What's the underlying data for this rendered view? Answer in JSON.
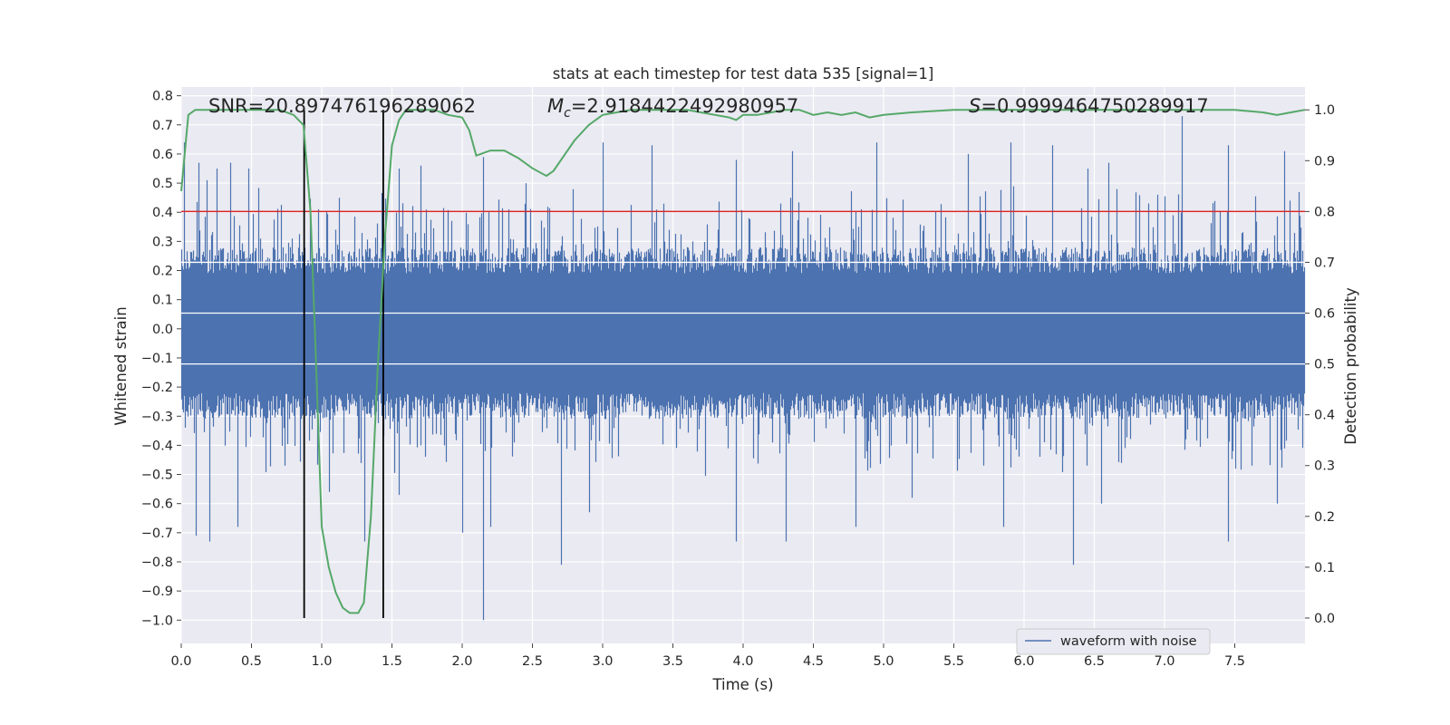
{
  "chart_data": {
    "type": "line",
    "title": "stats at each timestep for test data 535 [signal=1]",
    "xlabel": "Time (s)",
    "ylabel": "Whitened strain",
    "y2label": "Detection probability",
    "xlim": [
      0.0,
      8.0
    ],
    "ylim": [
      -1.08,
      0.83
    ],
    "y2lim": [
      -0.05,
      1.045
    ],
    "xticks": [
      0.0,
      0.5,
      1.0,
      1.5,
      2.0,
      2.5,
      3.0,
      3.5,
      4.0,
      4.5,
      5.0,
      5.5,
      6.0,
      6.5,
      7.0,
      7.5
    ],
    "xtick_labels": [
      "0.0",
      "0.5",
      "1.0",
      "1.5",
      "2.0",
      "2.5",
      "3.0",
      "3.5",
      "4.0",
      "4.5",
      "5.0",
      "5.5",
      "6.0",
      "6.5",
      "7.0",
      "7.5"
    ],
    "yticks": [
      0.8,
      0.7,
      0.6,
      0.5,
      0.4,
      0.3,
      0.2,
      0.1,
      0.0,
      -0.1,
      -0.2,
      -0.3,
      -0.4,
      -0.5,
      -0.6,
      -0.7,
      -0.8,
      -0.9,
      -1.0
    ],
    "ytick_labels": [
      "0.8",
      "0.7",
      "0.6",
      "0.5",
      "0.4",
      "0.3",
      "0.2",
      "0.1",
      "0.0",
      "−0.1",
      "−0.2",
      "−0.3",
      "−0.4",
      "−0.5",
      "−0.6",
      "−0.7",
      "−0.8",
      "−0.9",
      "−1.0"
    ],
    "y2ticks": [
      1.0,
      0.9,
      0.8,
      0.7,
      0.6,
      0.5,
      0.4,
      0.3,
      0.2,
      0.1,
      0.0
    ],
    "y2tick_labels": [
      "1.0",
      "0.9",
      "0.8",
      "0.7",
      "0.6",
      "0.5",
      "0.4",
      "0.3",
      "0.2",
      "0.1",
      "0.0"
    ],
    "annotations": {
      "snr": "SNR=20.897476196289062",
      "mc_symbol": "M",
      "mc_sub": "c",
      "mc_value": "=2.9184422492980957",
      "s_symbol": "S",
      "s_value": "=0.9999464750289917"
    },
    "legend": {
      "label": "waveform with noise",
      "position": "lower-right"
    },
    "threshold": {
      "value": 0.8,
      "axis": "right",
      "color": "#d62728"
    },
    "vlines": {
      "x": [
        0.875,
        1.438
      ],
      "color": "#000000"
    },
    "series": [
      {
        "name": "waveform with noise",
        "axis": "left",
        "color": "#4c72b0",
        "description": "whitened strain time series, approx. ±0.25 dense band with spikes up to 0.74 and down to -1.0",
        "spikes_high": [
          [
            0.02,
            0.64
          ],
          [
            0.12,
            0.57
          ],
          [
            0.18,
            0.51
          ],
          [
            0.25,
            0.55
          ],
          [
            0.35,
            0.57
          ],
          [
            0.48,
            0.55
          ],
          [
            1.12,
            0.45
          ],
          [
            1.55,
            0.55
          ],
          [
            1.7,
            0.56
          ],
          [
            2.15,
            0.59
          ],
          [
            2.45,
            0.5
          ],
          [
            3.0,
            0.64
          ],
          [
            3.35,
            0.63
          ],
          [
            3.95,
            0.58
          ],
          [
            4.35,
            0.61
          ],
          [
            4.95,
            0.64
          ],
          [
            5.6,
            0.6
          ],
          [
            5.9,
            0.64
          ],
          [
            6.2,
            0.63
          ],
          [
            6.45,
            0.55
          ],
          [
            6.6,
            0.57
          ],
          [
            7.12,
            0.73
          ],
          [
            7.45,
            0.63
          ],
          [
            7.85,
            0.61
          ]
        ],
        "spikes_low": [
          [
            0.1,
            -0.71
          ],
          [
            0.2,
            -0.73
          ],
          [
            0.4,
            -0.68
          ],
          [
            1.05,
            -0.56
          ],
          [
            1.3,
            -0.73
          ],
          [
            1.55,
            -0.57
          ],
          [
            2.0,
            -0.7
          ],
          [
            2.15,
            -1.0
          ],
          [
            2.2,
            -0.68
          ],
          [
            2.7,
            -0.81
          ],
          [
            2.9,
            -0.63
          ],
          [
            3.95,
            -0.73
          ],
          [
            4.3,
            -0.73
          ],
          [
            4.8,
            -0.68
          ],
          [
            5.2,
            -0.58
          ],
          [
            5.85,
            -0.68
          ],
          [
            6.35,
            -0.81
          ],
          [
            6.55,
            -0.6
          ],
          [
            7.45,
            -0.73
          ],
          [
            7.8,
            -0.6
          ]
        ]
      },
      {
        "name": "detection probability",
        "axis": "right",
        "color": "#55a868",
        "x": [
          0.0,
          0.05,
          0.1,
          0.2,
          0.3,
          0.5,
          0.7,
          0.8,
          0.87,
          0.92,
          0.96,
          1.0,
          1.05,
          1.1,
          1.15,
          1.2,
          1.26,
          1.3,
          1.35,
          1.4,
          1.45,
          1.5,
          1.55,
          1.6,
          1.7,
          1.8,
          1.9,
          2.0,
          2.05,
          2.1,
          2.2,
          2.3,
          2.4,
          2.5,
          2.6,
          2.65,
          2.7,
          2.8,
          2.9,
          3.0,
          3.1,
          3.2,
          3.4,
          3.6,
          3.8,
          3.9,
          3.95,
          4.0,
          4.1,
          4.2,
          4.3,
          4.4,
          4.5,
          4.6,
          4.7,
          4.8,
          4.9,
          5.0,
          5.2,
          5.5,
          6.0,
          6.5,
          7.0,
          7.5,
          7.7,
          7.8,
          7.9,
          8.0
        ],
        "y": [
          0.84,
          0.99,
          1.0,
          1.0,
          1.0,
          1.0,
          1.0,
          0.99,
          0.97,
          0.8,
          0.5,
          0.18,
          0.1,
          0.05,
          0.02,
          0.01,
          0.01,
          0.03,
          0.2,
          0.5,
          0.75,
          0.93,
          0.98,
          1.0,
          1.0,
          1.0,
          0.99,
          0.985,
          0.96,
          0.91,
          0.92,
          0.92,
          0.905,
          0.885,
          0.87,
          0.88,
          0.9,
          0.94,
          0.97,
          0.99,
          0.995,
          1.0,
          1.0,
          1.0,
          0.99,
          0.985,
          0.98,
          0.99,
          0.99,
          0.995,
          1.0,
          1.0,
          0.99,
          0.995,
          0.99,
          0.995,
          0.985,
          0.99,
          0.995,
          1.0,
          1.0,
          1.0,
          1.0,
          1.0,
          0.995,
          0.99,
          0.995,
          1.0
        ]
      }
    ]
  }
}
